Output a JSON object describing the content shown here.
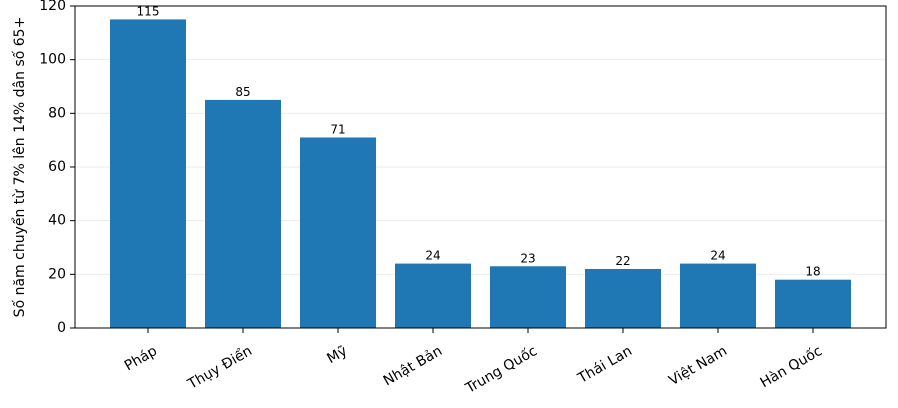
{
  "chart_data": {
    "type": "bar",
    "ylabel": "Số năm chuyển từ 7% lên 14% dân số 65+",
    "categories": [
      "Pháp",
      "Thụy Điển",
      "Mỹ",
      "Nhật Bản",
      "Trung Quốc",
      "Thái Lan",
      "Việt Nam",
      "Hàn Quốc"
    ],
    "values": [
      115,
      85,
      71,
      24,
      23,
      22,
      24,
      18
    ],
    "color": "#1f77b4",
    "ylim": [
      0,
      120
    ],
    "yticks": [
      0,
      20,
      40,
      60,
      80,
      100,
      120
    ],
    "grid": true
  }
}
